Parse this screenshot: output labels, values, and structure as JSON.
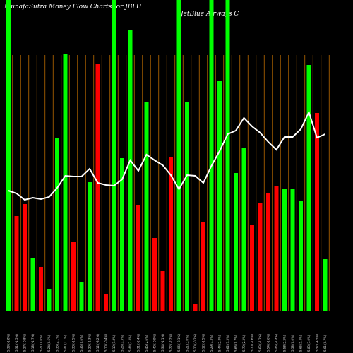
{
  "chart_data": {
    "type": "bar",
    "title": "MunafaSutra  Money Flow  Charts for JBLU",
    "subtitle": "JetBlue  Airways C",
    "categories": [
      "5.39 (-1.8%)",
      "5.31 (-1.5%)",
      "5.27 (-0.8%)",
      "5.18 (-1.7%)",
      "5.21 (0.6%)",
      "5.24 (0.6%)",
      "5.35 (2.1%)",
      "5.41 (1.1%)",
      "5.33 (-1.5%)",
      "5.36 (0.6%)",
      "5.29 (-1.3%)",
      "5.12 (-3.2%)",
      "5.10 (-0.4%)",
      "5.19 (1.8%)",
      "5.26 (1.3%)",
      "5.44 (3.4%)",
      "5.31 (-2.4%)",
      "5.45 (2.6%)",
      "5.40 (-0.9%)",
      "5.34 (-1.1%)",
      "5.22 (-2.2%)",
      "5.06 (-3.1%)",
      "5.21 (3.0%)",
      "5.20 (-0.2%)",
      "5.12 (-1.5%)",
      "5.29 (3.3%)",
      "5.44 (2.8%)",
      "5.62 (3.3%)",
      "5.66 (0.7%)",
      "5.79 (2.3%)",
      "5.70 (-1.6%)",
      "5.63 (-1.2%)",
      "5.54 (-1.6%)",
      "5.46 (-1.4%)",
      "5.58 (2.2%)",
      "5.58 (0.0%)",
      "5.66 (1.4%)",
      "5.83 (3.0%)",
      "5.57 (-4.5%)",
      "5.61 (0.7%)"
    ],
    "values": [
      450,
      134,
      151,
      74,
      62,
      30,
      244,
      364,
      97,
      40,
      182,
      350,
      23,
      450,
      216,
      397,
      150,
      295,
      103,
      56,
      217,
      450,
      295,
      10,
      126,
      450,
      325,
      450,
      195,
      230,
      122,
      153,
      166,
      176,
      172,
      172,
      156,
      348,
      280,
      73
    ],
    "colors": [
      "#00ff00",
      "#ff0000",
      "#ff0000",
      "#00ff00",
      "#ff0000",
      "#00ff00",
      "#00ff00",
      "#00ff00",
      "#ff0000",
      "#00ff00",
      "#00ff00",
      "#ff0000",
      "#ff0000",
      "#00ff00",
      "#00ff00",
      "#00ff00",
      "#ff0000",
      "#00ff00",
      "#ff0000",
      "#ff0000",
      "#ff0000",
      "#00ff00",
      "#00ff00",
      "#ff0000",
      "#ff0000",
      "#00ff00",
      "#00ff00",
      "#00ff00",
      "#00ff00",
      "#00ff00",
      "#ff0000",
      "#ff0000",
      "#ff0000",
      "#ff0000",
      "#00ff00",
      "#00ff00",
      "#00ff00",
      "#00ff00",
      "#ff0000",
      "#00ff00"
    ],
    "line_values": [
      170,
      166,
      157,
      160,
      158,
      161,
      174,
      191,
      190,
      190,
      201,
      181,
      178,
      177,
      186,
      213,
      198,
      221,
      213,
      206,
      192,
      172,
      192,
      191,
      181,
      205,
      226,
      250,
      255,
      273,
      261,
      252,
      239,
      228,
      246,
      246,
      257,
      281,
      245,
      250
    ],
    "line_color": "#ffffff",
    "grid_color": "#b86a00",
    "ylim": [
      0,
      440
    ]
  }
}
